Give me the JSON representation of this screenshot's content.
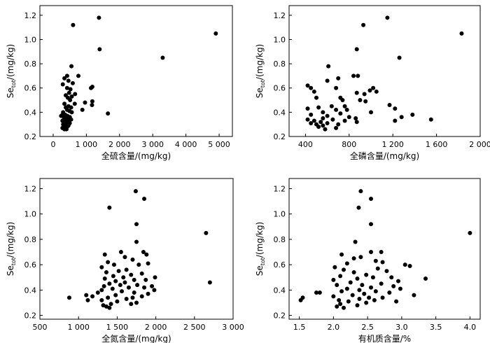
{
  "chart_data": [
    {
      "type": "scatter",
      "xlabel": "全硫含量/(mg/kg)",
      "ylabel_main": "Se",
      "ylabel_sub": "tot",
      "ylabel_unit": "/(mg/kg)",
      "xlim": [
        -400,
        5400
      ],
      "ylim": [
        0.2,
        1.28
      ],
      "xticks": [
        0,
        1000,
        2000,
        3000,
        4000,
        5000
      ],
      "xtick_labels": [
        "0",
        "1 000",
        "2 000",
        "3 000",
        "4 000",
        "5 000"
      ],
      "yticks": [
        0.2,
        0.4,
        0.6,
        0.8,
        1.0,
        1.2
      ],
      "ytick_labels": [
        "0.2",
        "0.4",
        "0.6",
        "0.8",
        "1.0",
        "1.2"
      ],
      "points": [
        [
          600,
          1.12
        ],
        [
          1380,
          1.18
        ],
        [
          1400,
          0.92
        ],
        [
          4900,
          1.05
        ],
        [
          3300,
          0.85
        ],
        [
          550,
          0.78
        ],
        [
          340,
          0.68
        ],
        [
          420,
          0.7
        ],
        [
          760,
          0.7
        ],
        [
          460,
          0.66
        ],
        [
          590,
          0.64
        ],
        [
          290,
          0.63
        ],
        [
          1180,
          0.61
        ],
        [
          1140,
          0.6
        ],
        [
          420,
          0.6
        ],
        [
          520,
          0.59
        ],
        [
          480,
          0.56
        ],
        [
          660,
          0.55
        ],
        [
          380,
          0.54
        ],
        [
          560,
          0.53
        ],
        [
          440,
          0.52
        ],
        [
          510,
          0.5
        ],
        [
          1180,
          0.49
        ],
        [
          960,
          0.48
        ],
        [
          650,
          0.47
        ],
        [
          340,
          0.47
        ],
        [
          1170,
          0.46
        ],
        [
          460,
          0.45
        ],
        [
          540,
          0.44
        ],
        [
          380,
          0.44
        ],
        [
          880,
          0.42
        ],
        [
          420,
          0.42
        ],
        [
          490,
          0.41
        ],
        [
          300,
          0.4
        ],
        [
          560,
          0.4
        ],
        [
          1650,
          0.39
        ],
        [
          280,
          0.38
        ],
        [
          360,
          0.38
        ],
        [
          240,
          0.37
        ],
        [
          430,
          0.37
        ],
        [
          500,
          0.36
        ],
        [
          330,
          0.35
        ],
        [
          390,
          0.35
        ],
        [
          460,
          0.34
        ],
        [
          540,
          0.34
        ],
        [
          280,
          0.33
        ],
        [
          360,
          0.33
        ],
        [
          420,
          0.32
        ],
        [
          500,
          0.31
        ],
        [
          300,
          0.3
        ],
        [
          380,
          0.3
        ],
        [
          460,
          0.29
        ],
        [
          320,
          0.28
        ],
        [
          420,
          0.28
        ],
        [
          280,
          0.27
        ],
        [
          400,
          0.26
        ],
        [
          340,
          0.26
        ]
      ]
    },
    {
      "type": "scatter",
      "xlabel": "全磷含量/(mg/kg)",
      "ylabel_main": "Se",
      "ylabel_sub": "tot",
      "ylabel_unit": "/(mg/kg)",
      "xlim": [
        250,
        2000
      ],
      "ylim": [
        0.2,
        1.28
      ],
      "xticks": [
        400,
        800,
        1200,
        1600,
        2000
      ],
      "xtick_labels": [
        "400",
        "800",
        "1 200",
        "1 600",
        "2 000"
      ],
      "yticks": [
        0.2,
        0.4,
        0.6,
        0.8,
        1.0,
        1.2
      ],
      "ytick_labels": [
        "0.2",
        "0.4",
        "0.6",
        "0.8",
        "1.0",
        "1.2"
      ],
      "points": [
        [
          930,
          1.12
        ],
        [
          1150,
          1.18
        ],
        [
          870,
          0.92
        ],
        [
          1830,
          1.05
        ],
        [
          1260,
          0.85
        ],
        [
          610,
          0.78
        ],
        [
          840,
          0.7
        ],
        [
          880,
          0.7
        ],
        [
          1020,
          0.6
        ],
        [
          990,
          0.58
        ],
        [
          1050,
          0.57
        ],
        [
          420,
          0.62
        ],
        [
          700,
          0.68
        ],
        [
          600,
          0.66
        ],
        [
          450,
          0.6
        ],
        [
          680,
          0.6
        ],
        [
          480,
          0.57
        ],
        [
          870,
          0.56
        ],
        [
          940,
          0.55
        ],
        [
          720,
          0.52
        ],
        [
          500,
          0.52
        ],
        [
          740,
          0.5
        ],
        [
          900,
          0.5
        ],
        [
          950,
          0.49
        ],
        [
          1170,
          0.46
        ],
        [
          640,
          0.45
        ],
        [
          760,
          0.45
        ],
        [
          520,
          0.44
        ],
        [
          1220,
          0.43
        ],
        [
          420,
          0.43
        ],
        [
          680,
          0.42
        ],
        [
          780,
          0.42
        ],
        [
          560,
          0.4
        ],
        [
          1000,
          0.4
        ],
        [
          720,
          0.39
        ],
        [
          1380,
          0.38
        ],
        [
          450,
          0.38
        ],
        [
          600,
          0.37
        ],
        [
          1280,
          0.36
        ],
        [
          800,
          0.36
        ],
        [
          560,
          0.35
        ],
        [
          860,
          0.35
        ],
        [
          1550,
          0.34
        ],
        [
          420,
          0.34
        ],
        [
          650,
          0.34
        ],
        [
          480,
          0.33
        ],
        [
          760,
          0.33
        ],
        [
          1220,
          0.33
        ],
        [
          540,
          0.32
        ],
        [
          870,
          0.32
        ],
        [
          450,
          0.31
        ],
        [
          600,
          0.31
        ],
        [
          500,
          0.3
        ],
        [
          700,
          0.3
        ],
        [
          560,
          0.29
        ],
        [
          520,
          0.28
        ],
        [
          680,
          0.27
        ],
        [
          580,
          0.26
        ]
      ]
    },
    {
      "type": "scatter",
      "xlabel": "全氮含量/(mg/kg)",
      "ylabel_main": "Se",
      "ylabel_sub": "tot",
      "ylabel_unit": "/(mg/kg)",
      "xlim": [
        500,
        3000
      ],
      "ylim": [
        0.17,
        1.28
      ],
      "xticks": [
        500,
        1000,
        1500,
        2000,
        2500,
        3000
      ],
      "xtick_labels": [
        "500",
        "1 000",
        "1 500",
        "2 000",
        "2 500",
        "3 000"
      ],
      "yticks": [
        0.2,
        0.4,
        0.6,
        0.8,
        1.0,
        1.2
      ],
      "ytick_labels": [
        "0.2",
        "0.4",
        "0.6",
        "0.8",
        "1.0",
        "1.2"
      ],
      "points": [
        [
          1740,
          1.18
        ],
        [
          1850,
          1.12
        ],
        [
          1400,
          1.05
        ],
        [
          1750,
          0.92
        ],
        [
          2650,
          0.85
        ],
        [
          2700,
          0.46
        ],
        [
          1750,
          0.78
        ],
        [
          1550,
          0.7
        ],
        [
          1840,
          0.7
        ],
        [
          1880,
          0.68
        ],
        [
          1340,
          0.68
        ],
        [
          1600,
          0.66
        ],
        [
          1700,
          0.64
        ],
        [
          1380,
          0.62
        ],
        [
          1900,
          0.61
        ],
        [
          1460,
          0.6
        ],
        [
          1780,
          0.6
        ],
        [
          1300,
          0.58
        ],
        [
          1620,
          0.56
        ],
        [
          1520,
          0.55
        ],
        [
          1360,
          0.54
        ],
        [
          1820,
          0.53
        ],
        [
          1680,
          0.52
        ],
        [
          1450,
          0.51
        ],
        [
          1580,
          0.5
        ],
        [
          1990,
          0.5
        ],
        [
          1340,
          0.49
        ],
        [
          1720,
          0.48
        ],
        [
          1870,
          0.48
        ],
        [
          1480,
          0.47
        ],
        [
          1600,
          0.46
        ],
        [
          1400,
          0.45
        ],
        [
          1540,
          0.44
        ],
        [
          1760,
          0.44
        ],
        [
          1330,
          0.43
        ],
        [
          1950,
          0.43
        ],
        [
          1650,
          0.42
        ],
        [
          1850,
          0.42
        ],
        [
          1440,
          0.41
        ],
        [
          1980,
          0.4
        ],
        [
          1300,
          0.4
        ],
        [
          1560,
          0.39
        ],
        [
          1720,
          0.38
        ],
        [
          1250,
          0.38
        ],
        [
          1900,
          0.37
        ],
        [
          1100,
          0.36
        ],
        [
          1480,
          0.36
        ],
        [
          1820,
          0.35
        ],
        [
          1180,
          0.35
        ],
        [
          1700,
          0.34
        ],
        [
          880,
          0.34
        ],
        [
          1380,
          0.34
        ],
        [
          1620,
          0.33
        ],
        [
          1300,
          0.32
        ],
        [
          1120,
          0.32
        ],
        [
          1500,
          0.31
        ],
        [
          1750,
          0.3
        ],
        [
          1420,
          0.29
        ],
        [
          1680,
          0.29
        ],
        [
          1320,
          0.28
        ],
        [
          1360,
          0.27
        ],
        [
          1400,
          0.26
        ]
      ]
    },
    {
      "type": "scatter",
      "xlabel": "有机质含量/%",
      "ylabel_main": "Se",
      "ylabel_sub": "tot",
      "ylabel_unit": "/(mg/kg)",
      "xlim": [
        1.35,
        4.15
      ],
      "ylim": [
        0.17,
        1.28
      ],
      "xticks": [
        1.5,
        2.0,
        2.5,
        3.0,
        3.5,
        4.0
      ],
      "xtick_labels": [
        "1.5",
        "2.0",
        "2.5",
        "3.0",
        "3.5",
        "4.0"
      ],
      "yticks": [
        0.2,
        0.4,
        0.6,
        0.8,
        1.0,
        1.2
      ],
      "ytick_labels": [
        "0.2",
        "0.4",
        "0.6",
        "0.8",
        "1.0",
        "1.2"
      ],
      "points": [
        [
          2.4,
          1.18
        ],
        [
          2.55,
          1.12
        ],
        [
          2.37,
          1.05
        ],
        [
          2.55,
          0.92
        ],
        [
          4.0,
          0.85
        ],
        [
          2.32,
          0.78
        ],
        [
          2.55,
          0.7
        ],
        [
          2.7,
          0.7
        ],
        [
          2.12,
          0.68
        ],
        [
          2.4,
          0.66
        ],
        [
          2.3,
          0.65
        ],
        [
          2.62,
          0.63
        ],
        [
          2.72,
          0.62
        ],
        [
          2.2,
          0.61
        ],
        [
          3.05,
          0.6
        ],
        [
          3.12,
          0.59
        ],
        [
          2.02,
          0.58
        ],
        [
          2.65,
          0.57
        ],
        [
          2.15,
          0.56
        ],
        [
          2.78,
          0.55
        ],
        [
          2.3,
          0.54
        ],
        [
          2.48,
          0.52
        ],
        [
          2.1,
          0.51
        ],
        [
          2.85,
          0.5
        ],
        [
          2.58,
          0.5
        ],
        [
          2.35,
          0.49
        ],
        [
          3.35,
          0.49
        ],
        [
          2.0,
          0.48
        ],
        [
          2.95,
          0.47
        ],
        [
          2.25,
          0.46
        ],
        [
          2.7,
          0.45
        ],
        [
          2.42,
          0.44
        ],
        [
          2.05,
          0.44
        ],
        [
          2.88,
          0.43
        ],
        [
          2.55,
          0.42
        ],
        [
          2.2,
          0.41
        ],
        [
          2.98,
          0.41
        ],
        [
          2.38,
          0.4
        ],
        [
          2.62,
          0.39
        ],
        [
          2.12,
          0.39
        ],
        [
          1.75,
          0.38
        ],
        [
          1.8,
          0.38
        ],
        [
          2.82,
          0.38
        ],
        [
          2.45,
          0.37
        ],
        [
          3.18,
          0.36
        ],
        [
          2.28,
          0.36
        ],
        [
          2.0,
          0.35
        ],
        [
          2.52,
          0.34
        ],
        [
          2.72,
          0.34
        ],
        [
          1.55,
          0.34
        ],
        [
          2.38,
          0.33
        ],
        [
          1.52,
          0.32
        ],
        [
          2.08,
          0.32
        ],
        [
          2.6,
          0.32
        ],
        [
          2.92,
          0.31
        ],
        [
          2.22,
          0.31
        ],
        [
          2.48,
          0.3
        ],
        [
          2.1,
          0.29
        ],
        [
          2.35,
          0.28
        ],
        [
          2.05,
          0.27
        ],
        [
          2.15,
          0.26
        ]
      ]
    }
  ]
}
